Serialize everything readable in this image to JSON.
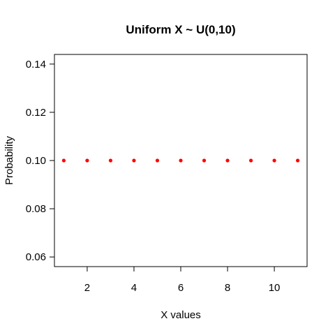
{
  "chart_data": {
    "type": "scatter",
    "title": "Uniform X ~ U(0,10)",
    "xlabel": "X values",
    "ylabel": "Probability",
    "x": [
      1,
      2,
      3,
      4,
      5,
      6,
      7,
      8,
      9,
      10,
      11
    ],
    "y": [
      0.1,
      0.1,
      0.1,
      0.1,
      0.1,
      0.1,
      0.1,
      0.1,
      0.1,
      0.1,
      0.1
    ],
    "xlim": [
      0.6,
      11.4
    ],
    "ylim": [
      0.056,
      0.144
    ],
    "xticks": [
      2,
      4,
      6,
      8,
      10
    ],
    "xtick_labels": [
      "2",
      "4",
      "6",
      "8",
      "10"
    ],
    "yticks": [
      0.06,
      0.08,
      0.1,
      0.12,
      0.14
    ],
    "ytick_labels": [
      "0.06",
      "0.08",
      "0.10",
      "0.12",
      "0.14"
    ],
    "point_color": "#ff0000",
    "grid": false
  }
}
